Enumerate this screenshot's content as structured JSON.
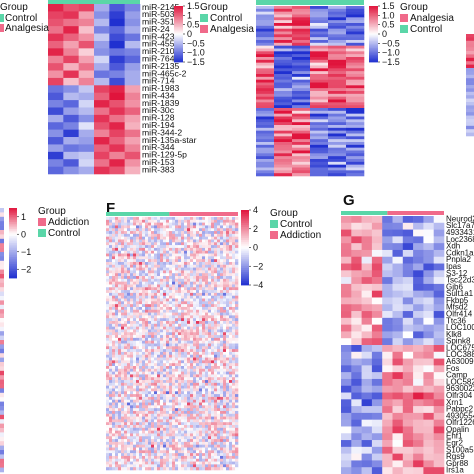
{
  "colors": {
    "low": "#2030d0",
    "mid": "#ffffff",
    "high": "#e0143c",
    "control_annot": "#5ad6a8",
    "analgesia_annot": "#f06a8a",
    "addiction_annot": "#f06a8a",
    "text": "#111111"
  },
  "chart_data": [
    {
      "type": "heatmap",
      "panel": "",
      "legend_title": "Group",
      "groups": [
        {
          "name": "Control",
          "color": "#5ad6a8"
        },
        {
          "name": "Analgesia",
          "color": "#f06a8a"
        }
      ],
      "column_groups": [
        "Control",
        "Control",
        "Control",
        "Analgesia",
        "Analgesia",
        "Analgesia"
      ],
      "row_labels": [
        "miR-2145",
        "miR-503",
        "miR-351",
        "miR-24",
        "miR-423",
        "miR-455",
        "miR-210",
        "miR-764",
        "miR-2135",
        "miR-465c-2",
        "miR-714",
        "miR-1983",
        "miR-434",
        "miR-1839",
        "miR-30c",
        "miR-128",
        "miR-194",
        "miR-344-2",
        "miR-135a-star",
        "miR-344",
        "miR-129-5p",
        "miR-153",
        "miR-383"
      ],
      "values": [
        [
          1.4,
          1.1,
          1.2,
          -0.6,
          -1.2,
          -0.9
        ],
        [
          1.2,
          1.3,
          0.6,
          -0.8,
          -1.4,
          -0.7
        ],
        [
          1.1,
          0.9,
          0.8,
          -0.5,
          -1.5,
          -0.8
        ],
        [
          0.9,
          1.4,
          0.4,
          -0.9,
          -1.1,
          -0.6
        ],
        [
          1.3,
          1.0,
          0.7,
          -0.4,
          -1.3,
          -1.0
        ],
        [
          1.0,
          0.6,
          1.1,
          -0.7,
          -1.5,
          -0.5
        ],
        [
          1.4,
          0.8,
          0.3,
          -0.8,
          -1.0,
          -0.9
        ],
        [
          0.8,
          1.2,
          0.6,
          -0.3,
          -1.4,
          -1.1
        ],
        [
          1.1,
          0.5,
          0.9,
          -0.6,
          -1.2,
          -0.7
        ],
        [
          0.7,
          1.3,
          0.5,
          -1.0,
          -0.9,
          -0.6
        ],
        [
          1.2,
          0.4,
          0.8,
          -0.5,
          -1.3,
          -0.6
        ],
        [
          -1.0,
          -0.8,
          -0.4,
          1.2,
          1.4,
          0.6
        ],
        [
          -1.2,
          -0.5,
          -0.6,
          1.0,
          1.5,
          0.8
        ],
        [
          -0.9,
          -1.1,
          -0.3,
          1.4,
          1.1,
          0.7
        ],
        [
          -1.3,
          -0.7,
          -0.5,
          0.9,
          1.3,
          1.0
        ],
        [
          -0.6,
          -1.2,
          -0.8,
          1.3,
          0.9,
          0.6
        ],
        [
          -1.1,
          -0.9,
          -0.2,
          1.1,
          1.4,
          0.5
        ],
        [
          -0.8,
          -1.4,
          -0.6,
          0.8,
          1.2,
          0.9
        ],
        [
          -1.2,
          -0.6,
          -0.7,
          1.4,
          1.0,
          0.6
        ],
        [
          -0.7,
          -1.0,
          -0.9,
          1.0,
          1.3,
          0.8
        ],
        [
          -1.4,
          -0.5,
          -0.4,
          1.2,
          0.8,
          1.1
        ],
        [
          -0.9,
          -1.2,
          -0.3,
          0.9,
          1.4,
          0.7
        ],
        [
          -1.1,
          -0.8,
          -0.6,
          1.3,
          1.1,
          0.5
        ]
      ],
      "scale_ticks": [
        1.5,
        1.0,
        0.5,
        0,
        -0.5,
        -1.0,
        -1.5
      ],
      "scale_tick_labels": [
        "1.5",
        "1",
        "0.5",
        "0",
        "−0.5",
        "−1.0",
        "−1.5"
      ],
      "value_range": [
        -1.5,
        1.5
      ]
    },
    {
      "type": "heatmap",
      "panel": "",
      "legend_title": "Group",
      "groups": [
        {
          "name": "Analgesia",
          "color": "#f06a8a"
        },
        {
          "name": "Control",
          "color": "#5ad6a8"
        }
      ],
      "scale_ticks": [
        1.5,
        1.0,
        0.5,
        0,
        -0.5,
        -1.0,
        -1.5
      ],
      "scale_tick_labels": [
        "1.5",
        "1.0",
        "0.5",
        "0",
        "−0.5",
        "−1.0",
        "−1.5"
      ],
      "value_range": [
        -1.5,
        1.5
      ]
    },
    {
      "type": "heatmap",
      "panel": "",
      "legend_title": "Group",
      "groups": [
        {
          "name": "Addiction",
          "color": "#f06a8a"
        },
        {
          "name": "Control",
          "color": "#5ad6a8"
        }
      ],
      "scale_ticks": [
        1,
        0,
        -1,
        -2
      ],
      "scale_tick_labels": [
        "1",
        "0",
        "−1",
        "−2"
      ],
      "value_range": [
        -2,
        2
      ]
    },
    {
      "type": "heatmap",
      "panel": "F",
      "legend_title": "Group",
      "groups": [
        {
          "name": "Control",
          "color": "#5ad6a8"
        },
        {
          "name": "Addiction",
          "color": "#f06a8a"
        }
      ],
      "scale_ticks": [
        4,
        2,
        0,
        -2,
        -4
      ],
      "scale_tick_labels": [
        "4",
        "2",
        "0",
        "−2",
        "−4"
      ],
      "value_range": [
        -4,
        4
      ]
    },
    {
      "type": "heatmap",
      "panel": "G",
      "row_labels": [
        "Neurod2",
        "Slc17a7",
        "4933431",
        "Loc2368",
        "Xdh",
        "Cdkn1a",
        "Pnpla2",
        "Ipas",
        "S3-12",
        "Tsc22d3",
        "Gjb6",
        "Sult1a1",
        "Fkbp5",
        "Mfsd2",
        "Olfr414",
        "Ttc36",
        "LOC100",
        "Klk8",
        "Spink8",
        "LOC675",
        "LOC388",
        "A63009",
        "Fos",
        "Camp",
        "LOC582",
        "9630022",
        "Olfr304",
        "Xrn1",
        "Pabpc2",
        "4930554",
        "Olfr1226",
        "Opalin",
        "Ehf1",
        "Egr2",
        "S100a5",
        "Rgs9",
        "Gpr88",
        "Irs1a"
      ]
    }
  ]
}
